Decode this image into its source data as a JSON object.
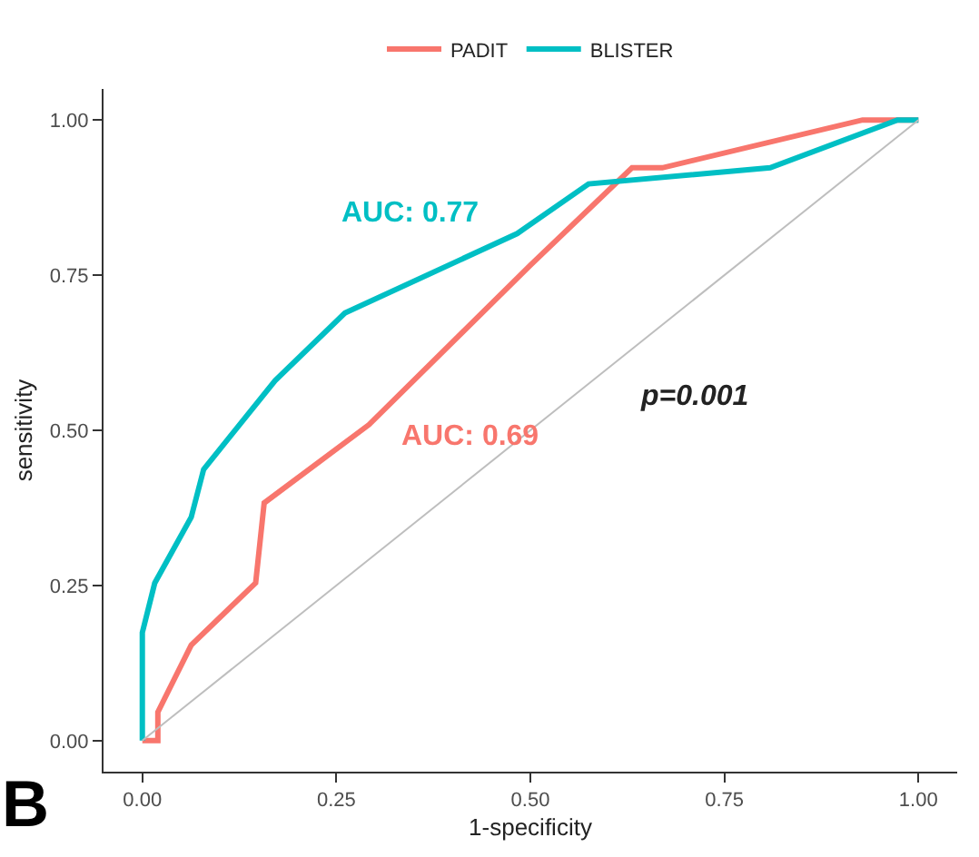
{
  "chart_data": {
    "type": "line",
    "xlabel": "1-specificity",
    "ylabel": "sensitivity",
    "xlim": [
      -0.05,
      1.05
    ],
    "ylim": [
      -0.05,
      1.05
    ],
    "xticks": [
      {
        "value": 0,
        "label": "0.00"
      },
      {
        "value": 0.25,
        "label": "0.25"
      },
      {
        "value": 0.5,
        "label": "0.50"
      },
      {
        "value": 0.75,
        "label": "0.75"
      },
      {
        "value": 1,
        "label": "1.00"
      }
    ],
    "yticks": [
      {
        "value": 0,
        "label": "0.00"
      },
      {
        "value": 0.25,
        "label": "0.25"
      },
      {
        "value": 0.5,
        "label": "0.50"
      },
      {
        "value": 0.75,
        "label": "0.75"
      },
      {
        "value": 1,
        "label": "1.00"
      }
    ],
    "grid": false,
    "legend": "top",
    "marker": "none",
    "line_style": "solid",
    "series": [
      {
        "name": "PADIT",
        "color": "#f8766d",
        "x": [
          0,
          0.02,
          0.02,
          0.063,
          0.146,
          0.157,
          0.292,
          0.5,
          0.631,
          0.67,
          0.928,
          1
        ],
        "values": [
          0,
          0,
          0.046,
          0.154,
          0.254,
          0.383,
          0.509,
          0.766,
          0.923,
          0.923,
          1,
          1
        ]
      },
      {
        "name": "BLISTER",
        "color": "#00bfc4",
        "x": [
          0,
          0,
          0.016,
          0.063,
          0.079,
          0.171,
          0.261,
          0.483,
          0.575,
          0.809,
          0.973,
          1
        ],
        "values": [
          0,
          0.174,
          0.254,
          0.36,
          0.437,
          0.58,
          0.689,
          0.817,
          0.897,
          0.923,
          1,
          1
        ]
      },
      {
        "color": "#bebebe",
        "x": [
          0,
          1
        ],
        "values": [
          0,
          1
        ]
      }
    ],
    "annotations": [
      "AUC: 0.69",
      "AUC: 0.77",
      "p=0.001",
      "B"
    ]
  }
}
